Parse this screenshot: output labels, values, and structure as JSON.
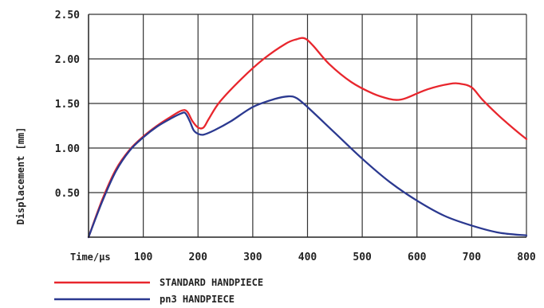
{
  "chart_data": {
    "type": "line",
    "xlabel": "Time/µs",
    "ylabel": "Displacement [mm]",
    "xlim": [
      0,
      800
    ],
    "ylim": [
      0,
      2.5
    ],
    "x_ticks": [
      100,
      200,
      300,
      400,
      500,
      600,
      700,
      800
    ],
    "x_tick_labels": [
      "100",
      "200",
      "300",
      "400",
      "500",
      "600",
      "700",
      "800"
    ],
    "y_ticks": [
      0.5,
      1.0,
      1.5,
      2.0,
      2.5
    ],
    "y_tick_labels": [
      "0.50",
      "1.00",
      "1.50",
      "2.00",
      "2.50"
    ],
    "grid": true,
    "legend_position": "bottom-left",
    "series": [
      {
        "name": "STANDARD HANDPIECE",
        "color": "#e8262d",
        "points": [
          [
            0,
            0
          ],
          [
            25,
            0.42
          ],
          [
            50,
            0.76
          ],
          [
            75,
            0.98
          ],
          [
            100,
            1.13
          ],
          [
            125,
            1.25
          ],
          [
            150,
            1.35
          ],
          [
            170,
            1.42
          ],
          [
            180,
            1.41
          ],
          [
            190,
            1.3
          ],
          [
            200,
            1.23
          ],
          [
            210,
            1.23
          ],
          [
            220,
            1.33
          ],
          [
            240,
            1.52
          ],
          [
            280,
            1.78
          ],
          [
            320,
            2.0
          ],
          [
            360,
            2.17
          ],
          [
            380,
            2.22
          ],
          [
            395,
            2.23
          ],
          [
            410,
            2.15
          ],
          [
            440,
            1.94
          ],
          [
            480,
            1.74
          ],
          [
            520,
            1.61
          ],
          [
            550,
            1.55
          ],
          [
            565,
            1.54
          ],
          [
            580,
            1.56
          ],
          [
            620,
            1.66
          ],
          [
            660,
            1.72
          ],
          [
            680,
            1.72
          ],
          [
            700,
            1.68
          ],
          [
            720,
            1.54
          ],
          [
            750,
            1.36
          ],
          [
            780,
            1.2
          ],
          [
            800,
            1.1
          ]
        ]
      },
      {
        "name": "pn3 HANDPIECE",
        "color": "#2b3990",
        "points": [
          [
            0,
            0
          ],
          [
            25,
            0.4
          ],
          [
            50,
            0.74
          ],
          [
            75,
            0.97
          ],
          [
            100,
            1.12
          ],
          [
            125,
            1.24
          ],
          [
            150,
            1.33
          ],
          [
            170,
            1.39
          ],
          [
            177,
            1.39
          ],
          [
            185,
            1.3
          ],
          [
            192,
            1.2
          ],
          [
            200,
            1.16
          ],
          [
            210,
            1.15
          ],
          [
            230,
            1.2
          ],
          [
            260,
            1.3
          ],
          [
            300,
            1.46
          ],
          [
            340,
            1.55
          ],
          [
            365,
            1.58
          ],
          [
            380,
            1.56
          ],
          [
            400,
            1.46
          ],
          [
            450,
            1.17
          ],
          [
            500,
            0.88
          ],
          [
            550,
            0.62
          ],
          [
            600,
            0.41
          ],
          [
            650,
            0.24
          ],
          [
            700,
            0.13
          ],
          [
            750,
            0.05
          ],
          [
            800,
            0.02
          ]
        ]
      }
    ]
  }
}
